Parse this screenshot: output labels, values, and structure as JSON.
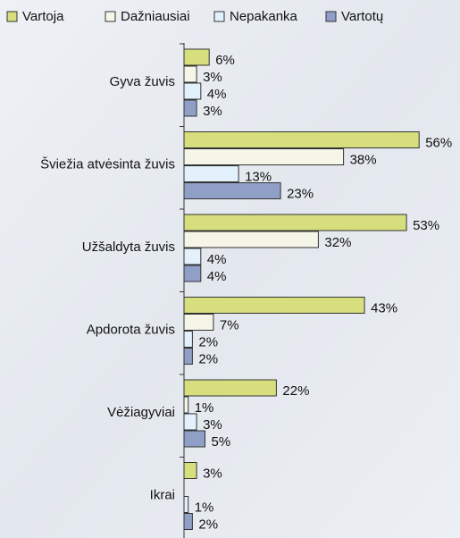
{
  "chart_data": {
    "type": "hbar",
    "categories": [
      "Gyva žuvis",
      "Šviežia atvėsinta žuvis",
      "Užšaldyta žuvis",
      "Apdorota žuvis",
      "Vėžiagyviai",
      "Ikrai"
    ],
    "series": [
      {
        "name": "Vartoja",
        "color": "#d6de7e",
        "values": [
          6,
          56,
          53,
          43,
          22,
          3
        ],
        "value_labels": [
          "6%",
          "56%",
          "53%",
          "43%",
          "22%",
          "3%"
        ]
      },
      {
        "name": "Dažniausiai",
        "color": "#f6f6e8",
        "values": [
          3,
          38,
          32,
          7,
          1,
          null
        ],
        "value_labels": [
          "3%",
          "38%",
          "32%",
          "7%",
          "1%",
          null
        ]
      },
      {
        "name": "Nepakanka",
        "color": "#e3f1fc",
        "values": [
          4,
          13,
          4,
          2,
          3,
          1
        ],
        "value_labels": [
          "4%",
          "13%",
          "4%",
          "2%",
          "3%",
          "1%"
        ]
      },
      {
        "name": "Vartotų",
        "color": "#8f9fc6",
        "values": [
          3,
          23,
          4,
          2,
          5,
          2
        ],
        "value_labels": [
          "3%",
          "23%",
          "4%",
          "2%",
          "5%",
          "2%"
        ]
      }
    ],
    "legend": "top"
  }
}
